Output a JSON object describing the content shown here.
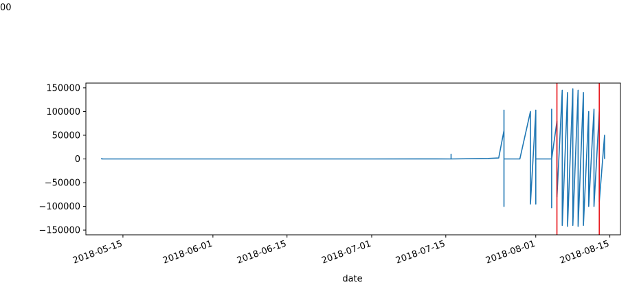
{
  "corner_text": "00",
  "chart_data": {
    "type": "line",
    "title": "",
    "xlabel": "date",
    "ylabel": "",
    "xlim": [
      "2018-05-08",
      "2018-08-17"
    ],
    "ylim": [
      -160000,
      160000
    ],
    "x_ticks": [
      "2018-05-15",
      "2018-06-01",
      "2018-06-15",
      "2018-07-01",
      "2018-07-15",
      "2018-08-01",
      "2018-08-15"
    ],
    "y_ticks": [
      150000,
      100000,
      50000,
      0,
      -50000,
      -100000,
      -150000
    ],
    "y_tick_labels": [
      "150000",
      "100000",
      "50000",
      "0",
      "−50000",
      "−100000",
      "−150000"
    ],
    "grid": false,
    "colors": {
      "series": "#1f77b4",
      "marker_lines": "#e8171c"
    },
    "series": [
      {
        "name": "",
        "points": [
          [
            "2018-05-11",
            2000
          ],
          [
            "2018-05-11",
            0
          ],
          [
            "2018-05-20",
            0
          ],
          [
            "2018-06-01",
            0
          ],
          [
            "2018-06-15",
            0
          ],
          [
            "2018-07-01",
            0
          ],
          [
            "2018-07-10",
            200
          ],
          [
            "2018-07-16",
            0
          ],
          [
            "2018-07-16",
            10000
          ],
          [
            "2018-07-16",
            0
          ],
          [
            "2018-07-23",
            1000
          ],
          [
            "2018-07-25",
            2000
          ],
          [
            "2018-07-26",
            60000
          ],
          [
            "2018-07-26",
            -100000
          ],
          [
            "2018-07-26",
            103000
          ],
          [
            "2018-07-26",
            0
          ],
          [
            "2018-07-29",
            0
          ],
          [
            "2018-07-31",
            100000
          ],
          [
            "2018-07-31",
            -95000
          ],
          [
            "2018-08-01",
            100000
          ],
          [
            "2018-08-01",
            -95000
          ],
          [
            "2018-08-01",
            103000
          ],
          [
            "2018-08-01",
            0
          ],
          [
            "2018-08-04",
            0
          ],
          [
            "2018-08-04",
            105000
          ],
          [
            "2018-08-04",
            -103000
          ],
          [
            "2018-08-04",
            0
          ],
          [
            "2018-08-05",
            80000
          ],
          [
            "2018-08-05",
            -80000
          ],
          [
            "2018-08-06",
            145000
          ],
          [
            "2018-08-06",
            -140000
          ],
          [
            "2018-08-07",
            140000
          ],
          [
            "2018-08-07",
            -142000
          ],
          [
            "2018-08-08",
            148000
          ],
          [
            "2018-08-08",
            -140000
          ],
          [
            "2018-08-09",
            145000
          ],
          [
            "2018-08-09",
            -142000
          ],
          [
            "2018-08-10",
            140000
          ],
          [
            "2018-08-10",
            -140000
          ],
          [
            "2018-08-11",
            100000
          ],
          [
            "2018-08-11",
            -100000
          ],
          [
            "2018-08-12",
            105000
          ],
          [
            "2018-08-12",
            -100000
          ],
          [
            "2018-08-13",
            100000
          ],
          [
            "2018-08-13",
            -90000
          ],
          [
            "2018-08-14",
            50000
          ],
          [
            "2018-08-14",
            0
          ]
        ]
      }
    ],
    "vertical_lines": [
      "2018-08-05",
      "2018-08-13"
    ]
  }
}
